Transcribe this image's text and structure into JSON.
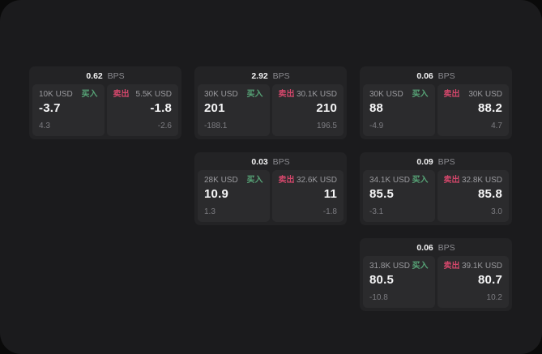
{
  "labels": {
    "buy": "买入",
    "sell": "卖出",
    "bps_unit": "BPS"
  },
  "colors": {
    "container_bg": "#1b1b1d",
    "card_bg": "#232325",
    "panel_bg": "#2b2b2d",
    "buy": "#57a477",
    "sell": "#d4476b",
    "value_text": "#f5f5f6",
    "muted_text": "#9a9a9e"
  },
  "cards": [
    {
      "row": 1,
      "col": 1,
      "bps": "0.62",
      "buy": {
        "amount": "10K USD",
        "value": "-3.7",
        "sub": "4.3"
      },
      "sell": {
        "amount": "5.5K USD",
        "value": "-1.8",
        "sub": "-2.6"
      }
    },
    {
      "row": 1,
      "col": 2,
      "bps": "2.92",
      "buy": {
        "amount": "30K USD",
        "value": "201",
        "sub": "-188.1"
      },
      "sell": {
        "amount": "30.1K USD",
        "value": "210",
        "sub": "196.5"
      }
    },
    {
      "row": 1,
      "col": 3,
      "bps": "0.06",
      "buy": {
        "amount": "30K USD",
        "value": "88",
        "sub": "-4.9"
      },
      "sell": {
        "amount": "30K USD",
        "value": "88.2",
        "sub": "4.7"
      }
    },
    {
      "row": 2,
      "col": 2,
      "bps": "0.03",
      "buy": {
        "amount": "28K USD",
        "value": "10.9",
        "sub": "1.3"
      },
      "sell": {
        "amount": "32.6K USD",
        "value": "11",
        "sub": "-1.8"
      }
    },
    {
      "row": 2,
      "col": 3,
      "bps": "0.09",
      "buy": {
        "amount": "34.1K USD",
        "value": "85.5",
        "sub": "-3.1"
      },
      "sell": {
        "amount": "32.8K USD",
        "value": "85.8",
        "sub": "3.0"
      }
    },
    {
      "row": 3,
      "col": 3,
      "bps": "0.06",
      "buy": {
        "amount": "31.8K USD",
        "value": "80.5",
        "sub": "-10.8"
      },
      "sell": {
        "amount": "39.1K USD",
        "value": "80.7",
        "sub": "10.2"
      }
    }
  ]
}
